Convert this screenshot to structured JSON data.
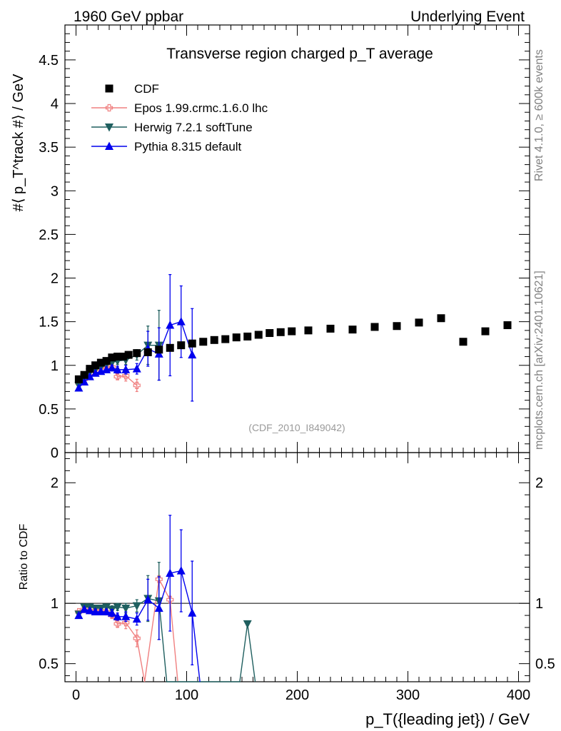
{
  "header": {
    "left": "1960 GeV ppbar",
    "right": "Underlying Event"
  },
  "side": {
    "rivet": "Rivet 4.1.0, ≥ 600k events",
    "mcplots": "mcplots.cern.ch [arXiv:2401.10621]"
  },
  "chart_data": {
    "type": "scatter",
    "title": "Transverse region charged p_T average",
    "analysis_label": "(CDF_2010_I849042)",
    "xlabel": "p_T({leading jet}) / GeV",
    "ylabel": "#⟨ p_T^track #⟩ / GeV",
    "ratio_ylabel": "Ratio to CDF",
    "xlim": [
      -10,
      410
    ],
    "ylim": [
      0,
      4.9
    ],
    "ratio_ylim": [
      0.35,
      2.25
    ],
    "x_ticks": [
      0,
      100,
      200,
      300,
      400
    ],
    "x_tick_labels": [
      "0",
      "100",
      "200",
      "300",
      "400"
    ],
    "y_ticks": [
      0,
      0.5,
      1,
      1.5,
      2,
      2.5,
      3,
      3.5,
      4,
      4.5
    ],
    "y_tick_labels": [
      "0",
      "0.5",
      "1",
      "1.5",
      "2",
      "2.5",
      "3",
      "3.5",
      "4",
      "4.5"
    ],
    "ratio_ticks": [
      0.5,
      1,
      2
    ],
    "ratio_tick_labels": [
      "0.5",
      "1",
      "2"
    ],
    "legend_position": "top-left",
    "series": [
      {
        "name": "CDF",
        "color": "#000000",
        "marker": "square",
        "line": false,
        "x": [
          2.5,
          7.5,
          12.5,
          17.5,
          22.5,
          27.5,
          32.5,
          37.5,
          42.5,
          47.5,
          55,
          65,
          75,
          85,
          95,
          105,
          115,
          125,
          135,
          145,
          155,
          165,
          175,
          185,
          195,
          210,
          230,
          250,
          270,
          290,
          310,
          330,
          350,
          370,
          390
        ],
        "y": [
          0.84,
          0.89,
          0.96,
          1.0,
          1.03,
          1.05,
          1.09,
          1.1,
          1.1,
          1.12,
          1.14,
          1.15,
          1.18,
          1.2,
          1.23,
          1.25,
          1.27,
          1.29,
          1.3,
          1.32,
          1.33,
          1.35,
          1.37,
          1.38,
          1.39,
          1.4,
          1.42,
          1.41,
          1.44,
          1.45,
          1.49,
          1.54,
          1.27,
          1.39,
          1.46
        ]
      },
      {
        "name": "Epos 1.99.crmc.1.6.0 lhc",
        "color": "#f08080",
        "marker": "open-cross",
        "line": true,
        "x": [
          2.5,
          7.5,
          12.5,
          17.5,
          22.5,
          27.5,
          32.5,
          37.5,
          45,
          55
        ],
        "y": [
          0.8,
          0.84,
          0.91,
          0.95,
          0.97,
          0.98,
          0.98,
          0.87,
          0.88,
          0.77
        ],
        "yerr": [
          0.01,
          0.01,
          0.01,
          0.02,
          0.02,
          0.03,
          0.03,
          0.03,
          0.06,
          0.07
        ],
        "ratio_x": [
          2.5,
          7.5,
          12.5,
          17.5,
          22.5,
          27.5,
          32.5,
          37.5,
          45,
          55,
          62,
          75,
          85,
          92
        ],
        "ratio_y": [
          0.93,
          0.95,
          0.94,
          0.94,
          0.94,
          0.93,
          0.9,
          0.83,
          0.84,
          0.71,
          0.3,
          1.2,
          1.03,
          0.3
        ],
        "ratio_yerr": [
          0.01,
          0.01,
          0.01,
          0.01,
          0.02,
          0.02,
          0.02,
          0.03,
          0.05,
          0.07,
          0,
          0.03,
          0.03,
          0
        ]
      },
      {
        "name": "Herwig 7.2.1 softTune",
        "color": "#1f5f5f",
        "marker": "triangle-down",
        "line": true,
        "x": [
          2.5,
          7.5,
          12.5,
          17.5,
          22.5,
          27.5,
          32.5,
          37.5,
          45,
          55,
          65,
          75
        ],
        "y": [
          0.77,
          0.86,
          0.92,
          0.95,
          0.98,
          1.01,
          1.03,
          1.05,
          1.06,
          1.12,
          1.23,
          1.23
        ],
        "yerr": [
          0.01,
          0.01,
          0.01,
          0.02,
          0.02,
          0.03,
          0.03,
          0.04,
          0.05,
          0.06,
          0.22,
          0.4
        ],
        "ratio_x": [
          2.5,
          7.5,
          12.5,
          17.5,
          22.5,
          27.5,
          32.5,
          37.5,
          45,
          55,
          65,
          75,
          82,
          148,
          155,
          162
        ],
        "ratio_y": [
          0.91,
          0.97,
          0.97,
          0.96,
          0.96,
          0.97,
          0.95,
          0.97,
          0.96,
          0.98,
          1.04,
          1.02,
          0.3,
          0.3,
          0.83,
          0.3
        ],
        "ratio_yerr": [
          0.01,
          0.01,
          0.01,
          0.02,
          0.02,
          0.02,
          0.03,
          0.03,
          0.04,
          0.05,
          0.19,
          0.32,
          0,
          0,
          0,
          0
        ]
      },
      {
        "name": "Pythia 8.315 default",
        "color": "#0000ee",
        "marker": "triangle-up",
        "line": true,
        "x": [
          2.5,
          7.5,
          12.5,
          17.5,
          22.5,
          27.5,
          32.5,
          37.5,
          45,
          55,
          65,
          75,
          85,
          95,
          105
        ],
        "y": [
          0.74,
          0.81,
          0.87,
          0.91,
          0.93,
          0.95,
          0.97,
          0.95,
          0.95,
          0.96,
          1.19,
          1.13,
          1.46,
          1.5,
          1.12
        ],
        "yerr": [
          0.01,
          0.01,
          0.01,
          0.02,
          0.02,
          0.03,
          0.03,
          0.04,
          0.05,
          0.06,
          0.2,
          0.3,
          0.58,
          0.41,
          0.53
        ],
        "ratio_x": [
          2.5,
          7.5,
          12.5,
          17.5,
          22.5,
          27.5,
          32.5,
          37.5,
          45,
          55,
          65,
          75,
          85,
          95,
          105,
          112
        ],
        "ratio_y": [
          0.9,
          0.95,
          0.94,
          0.93,
          0.93,
          0.93,
          0.92,
          0.89,
          0.89,
          0.87,
          1.03,
          0.96,
          1.25,
          1.27,
          0.92,
          0.3
        ],
        "ratio_yerr": [
          0.01,
          0.01,
          0.01,
          0.02,
          0.02,
          0.02,
          0.03,
          0.03,
          0.04,
          0.05,
          0.17,
          0.26,
          0.48,
          0.34,
          0.43,
          0
        ]
      }
    ]
  }
}
